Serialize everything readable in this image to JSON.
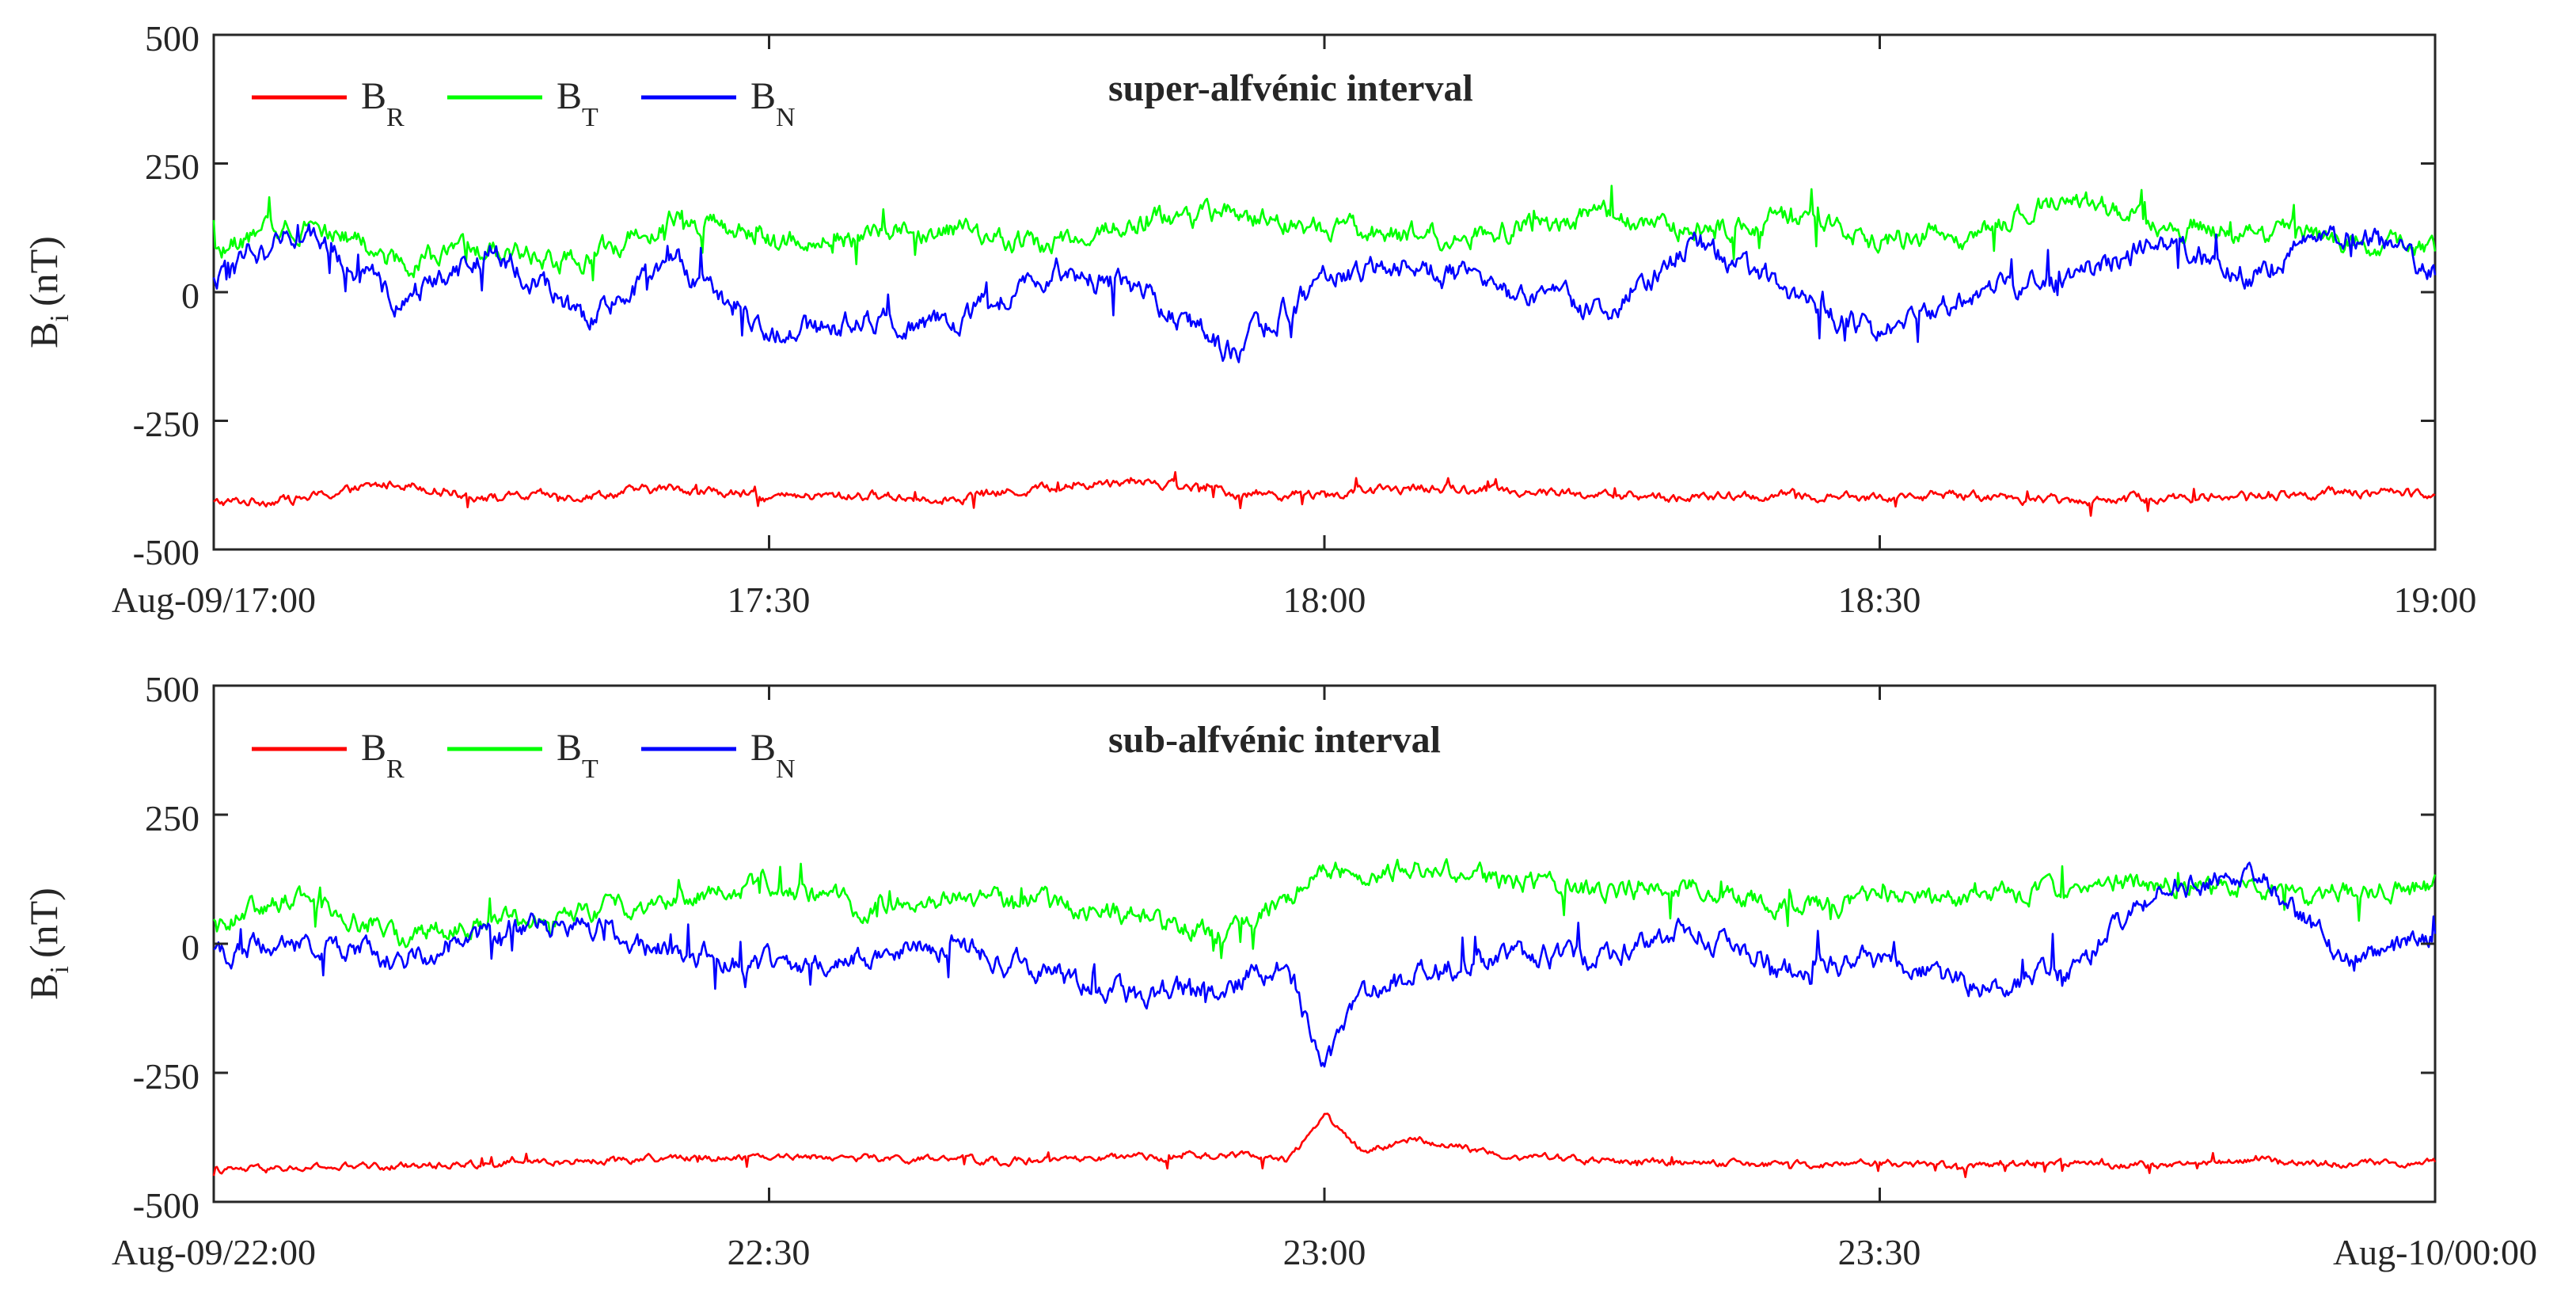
{
  "chart_data": [
    {
      "type": "line",
      "title": "super-alfvénic interval",
      "ylabel": "B",
      "ylabel_sub": "i",
      "ylabel_unit": "(nT)",
      "xlim": [
        "Aug-09/17:00",
        "19:00"
      ],
      "ylim": [
        -500,
        500
      ],
      "x_ticks": [
        "Aug-09/17:00",
        "17:30",
        "18:00",
        "18:30",
        "19:00"
      ],
      "y_ticks": [
        500,
        250,
        0,
        -250,
        -500
      ],
      "y_tick_labels": [
        "500",
        "250",
        "0",
        "-250",
        "-500"
      ],
      "legend": {
        "placement": "top-left"
      },
      "series": [
        {
          "name": "B",
          "sub": "R",
          "color": "#ff0000",
          "noise": 12,
          "x": [
            0,
            5,
            10,
            15,
            20,
            25,
            30,
            35,
            40,
            45,
            50,
            55,
            60,
            65,
            70,
            75,
            80,
            85,
            90,
            95,
            100,
            105,
            110,
            115,
            120
          ],
          "y": [
            -410,
            -400,
            -370,
            -400,
            -395,
            -380,
            -400,
            -395,
            -400,
            -380,
            -365,
            -390,
            -395,
            -380,
            -385,
            -395,
            -400,
            -395,
            -400,
            -395,
            -405,
            -400,
            -395,
            -390,
            -390
          ]
        },
        {
          "name": "B",
          "sub": "T",
          "color": "#00ff00",
          "noise": 28,
          "x": [
            0,
            5,
            10,
            15,
            20,
            25,
            30,
            35,
            40,
            45,
            50,
            55,
            60,
            65,
            70,
            75,
            80,
            85,
            90,
            95,
            100,
            105,
            110,
            115,
            120
          ],
          "y": [
            80,
            140,
            60,
            80,
            60,
            150,
            100,
            110,
            120,
            90,
            140,
            150,
            120,
            110,
            120,
            150,
            120,
            140,
            100,
            110,
            190,
            130,
            120,
            100,
            80
          ]
        },
        {
          "name": "B",
          "sub": "N",
          "color": "#0000ff",
          "noise": 32,
          "x": [
            0,
            5,
            10,
            15,
            20,
            25,
            30,
            35,
            40,
            45,
            50,
            55,
            60,
            65,
            70,
            75,
            80,
            85,
            90,
            95,
            100,
            105,
            110,
            115,
            120
          ],
          "y": [
            20,
            120,
            -20,
            80,
            -50,
            60,
            -80,
            -60,
            -60,
            40,
            10,
            -120,
            30,
            50,
            0,
            -40,
            100,
            0,
            -80,
            0,
            20,
            100,
            40,
            120,
            40
          ]
        }
      ]
    },
    {
      "type": "line",
      "title": "sub-alfvénic interval",
      "ylabel": "B",
      "ylabel_sub": "i",
      "ylabel_unit": "(nT)",
      "xlim": [
        "Aug-09/22:00",
        "Aug-10/00:00"
      ],
      "ylim": [
        -500,
        500
      ],
      "x_ticks": [
        "Aug-09/22:00",
        "22:30",
        "23:00",
        "23:30",
        "Aug-10/00:00"
      ],
      "y_ticks": [
        500,
        250,
        0,
        -250,
        -500
      ],
      "y_tick_labels": [
        "500",
        "250",
        "0",
        "-250",
        "-500"
      ],
      "legend": {
        "placement": "top-left"
      },
      "series": [
        {
          "name": "B",
          "sub": "R",
          "color": "#ff0000",
          "noise": 9,
          "x": [
            0,
            5,
            10,
            15,
            20,
            25,
            30,
            35,
            40,
            45,
            50,
            55,
            58,
            60,
            62,
            65,
            70,
            75,
            80,
            85,
            90,
            95,
            100,
            105,
            110,
            115,
            120
          ],
          "y": [
            -440,
            -435,
            -430,
            -425,
            -420,
            -415,
            -410,
            -415,
            -420,
            -420,
            -415,
            -410,
            -420,
            -330,
            -400,
            -380,
            -410,
            -420,
            -425,
            -430,
            -425,
            -430,
            -425,
            -430,
            -420,
            -425,
            -425
          ]
        },
        {
          "name": "B",
          "sub": "T",
          "color": "#00ff00",
          "noise": 26,
          "x": [
            0,
            5,
            10,
            15,
            20,
            25,
            30,
            35,
            40,
            45,
            50,
            55,
            60,
            65,
            70,
            75,
            80,
            85,
            90,
            95,
            100,
            105,
            110,
            115,
            120
          ],
          "y": [
            40,
            100,
            10,
            40,
            60,
            90,
            120,
            70,
            90,
            80,
            50,
            20,
            140,
            150,
            120,
            100,
            110,
            70,
            80,
            90,
            110,
            120,
            100,
            100,
            110
          ]
        },
        {
          "name": "B",
          "sub": "N",
          "color": "#0000ff",
          "noise": 30,
          "x": [
            0,
            5,
            10,
            15,
            20,
            25,
            30,
            35,
            40,
            45,
            50,
            55,
            58,
            60,
            62,
            65,
            70,
            75,
            80,
            85,
            90,
            95,
            100,
            105,
            110,
            115,
            120
          ],
          "y": [
            -20,
            10,
            -30,
            20,
            40,
            -20,
            -40,
            -30,
            0,
            -60,
            -100,
            -80,
            -30,
            -250,
            -100,
            -60,
            -20,
            -30,
            30,
            -50,
            -30,
            -80,
            -60,
            100,
            150,
            -30,
            10
          ]
        }
      ]
    }
  ]
}
